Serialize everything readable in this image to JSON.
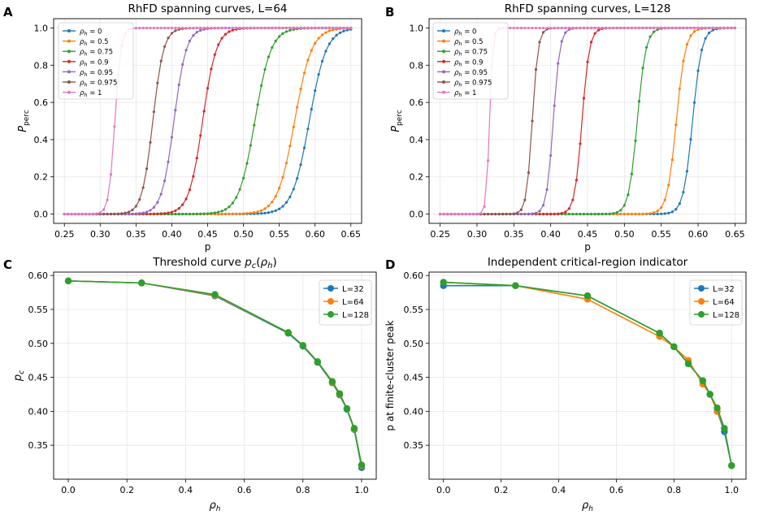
{
  "chart_data": [
    {
      "panel_letter": "A",
      "type": "line",
      "title": "RhFD spanning curves, L=64",
      "xlabel": "p",
      "ylabel": "P_perc",
      "xlim": [
        0.235,
        0.665
      ],
      "ylim": [
        -0.05,
        1.05
      ],
      "xticks": [
        0.25,
        0.3,
        0.35,
        0.4,
        0.45,
        0.5,
        0.55,
        0.6,
        0.65
      ],
      "xtick_labels": [
        "0.25",
        "0.30",
        "0.35",
        "0.40",
        "0.45",
        "0.50",
        "0.55",
        "0.60",
        "0.65"
      ],
      "yticks": [
        0.0,
        0.2,
        0.4,
        0.6,
        0.8,
        1.0
      ],
      "ytick_labels": [
        "0.0",
        "0.2",
        "0.4",
        "0.6",
        "0.8",
        "1.0"
      ],
      "grid": true,
      "legend": "upper-left",
      "x_range": [
        0.25,
        0.65
      ],
      "x_step": 0.005,
      "curve_shape": "logistic",
      "series": [
        {
          "name": "ρh = 0",
          "color": "#1f77b4",
          "center": 0.592,
          "width": 0.0118
        },
        {
          "name": "ρh = 0.5",
          "color": "#ff7f0e",
          "center": 0.5715,
          "width": 0.0118
        },
        {
          "name": "ρh = 0.75",
          "color": "#2ca02c",
          "center": 0.516,
          "width": 0.0112
        },
        {
          "name": "ρh = 0.9",
          "color": "#d62728",
          "center": 0.443,
          "width": 0.0095
        },
        {
          "name": "ρh = 0.95",
          "color": "#9467bd",
          "center": 0.403,
          "width": 0.0085
        },
        {
          "name": "ρh = 0.975",
          "color": "#8c564b",
          "center": 0.3735,
          "width": 0.0075
        },
        {
          "name": "ρh = 1",
          "color": "#e377c2",
          "center": 0.3205,
          "width": 0.0042
        }
      ]
    },
    {
      "panel_letter": "B",
      "type": "line",
      "title": "RhFD spanning curves, L=128",
      "xlabel": "p",
      "ylabel": "P_perc",
      "xlim": [
        0.235,
        0.665
      ],
      "ylim": [
        -0.05,
        1.05
      ],
      "xticks": [
        0.25,
        0.3,
        0.35,
        0.4,
        0.45,
        0.5,
        0.55,
        0.6,
        0.65
      ],
      "xtick_labels": [
        "0.25",
        "0.30",
        "0.35",
        "0.40",
        "0.45",
        "0.50",
        "0.55",
        "0.60",
        "0.65"
      ],
      "yticks": [
        0.0,
        0.2,
        0.4,
        0.6,
        0.8,
        1.0
      ],
      "ytick_labels": [
        "0.0",
        "0.2",
        "0.4",
        "0.6",
        "0.8",
        "1.0"
      ],
      "grid": true,
      "legend": "upper-left",
      "x_range": [
        0.25,
        0.65
      ],
      "x_step": 0.005,
      "curve_shape": "logistic",
      "series": [
        {
          "name": "ρh = 0",
          "color": "#1f77b4",
          "center": 0.5925,
          "width": 0.0062
        },
        {
          "name": "ρh = 0.5",
          "color": "#ff7f0e",
          "center": 0.5705,
          "width": 0.0062
        },
        {
          "name": "ρh = 0.75",
          "color": "#2ca02c",
          "center": 0.5175,
          "width": 0.0058
        },
        {
          "name": "ρh = 0.9",
          "color": "#d62728",
          "center": 0.4425,
          "width": 0.005
        },
        {
          "name": "ρh = 0.95",
          "color": "#9467bd",
          "center": 0.4035,
          "width": 0.0045
        },
        {
          "name": "ρh = 0.975",
          "color": "#8c564b",
          "center": 0.375,
          "width": 0.004
        },
        {
          "name": "ρh = 1",
          "color": "#e377c2",
          "center": 0.317,
          "width": 0.0022
        }
      ]
    },
    {
      "panel_letter": "C",
      "type": "line",
      "title": "Threshold curve p_c(ρ_h)",
      "xlabel": "ρh",
      "ylabel": "pc",
      "xlim": [
        -0.05,
        1.05
      ],
      "ylim": [
        0.3,
        0.605
      ],
      "xticks": [
        0.0,
        0.2,
        0.4,
        0.6,
        0.8,
        1.0
      ],
      "xtick_labels": [
        "0.0",
        "0.2",
        "0.4",
        "0.6",
        "0.8",
        "1.0"
      ],
      "yticks": [
        0.35,
        0.4,
        0.45,
        0.5,
        0.55,
        0.6
      ],
      "ytick_labels": [
        "0.35",
        "0.40",
        "0.45",
        "0.50",
        "0.55",
        "0.60"
      ],
      "grid": true,
      "legend": "upper-right",
      "x": [
        0,
        0.25,
        0.5,
        0.75,
        0.8,
        0.85,
        0.9,
        0.925,
        0.95,
        0.975,
        1.0
      ],
      "series": [
        {
          "name": "L=32",
          "color": "#1f77b4",
          "values": [
            0.592,
            0.589,
            0.57,
            0.515,
            0.496,
            0.472,
            0.442,
            0.424,
            0.403,
            0.373,
            0.317
          ]
        },
        {
          "name": "L=64",
          "color": "#ff7f0e",
          "values": [
            0.592,
            0.589,
            0.571,
            0.516,
            0.497,
            0.473,
            0.443,
            0.425,
            0.404,
            0.374,
            0.32
          ]
        },
        {
          "name": "L=128",
          "color": "#2ca02c",
          "values": [
            0.592,
            0.589,
            0.572,
            0.516,
            0.497,
            0.473,
            0.444,
            0.426,
            0.404,
            0.375,
            0.321
          ]
        }
      ]
    },
    {
      "panel_letter": "D",
      "type": "line",
      "title": "Independent critical-region indicator",
      "xlabel": "ρh",
      "ylabel": "p at finite-cluster peak",
      "xlim": [
        -0.05,
        1.05
      ],
      "ylim": [
        0.3,
        0.605
      ],
      "xticks": [
        0.0,
        0.2,
        0.4,
        0.6,
        0.8,
        1.0
      ],
      "xtick_labels": [
        "0.0",
        "0.2",
        "0.4",
        "0.6",
        "0.8",
        "1.0"
      ],
      "yticks": [
        0.35,
        0.4,
        0.45,
        0.5,
        0.55,
        0.6
      ],
      "ytick_labels": [
        "0.35",
        "0.40",
        "0.45",
        "0.50",
        "0.55",
        "0.60"
      ],
      "grid": true,
      "legend": "upper-right",
      "x": [
        0,
        0.25,
        0.5,
        0.75,
        0.8,
        0.85,
        0.9,
        0.925,
        0.95,
        0.975,
        1.0
      ],
      "series": [
        {
          "name": "L=32",
          "color": "#1f77b4",
          "values": [
            0.585,
            0.585,
            0.57,
            0.515,
            0.495,
            0.47,
            0.445,
            0.425,
            0.4,
            0.37,
            0.32
          ]
        },
        {
          "name": "L=64",
          "color": "#ff7f0e",
          "values": [
            0.59,
            0.585,
            0.565,
            0.51,
            0.495,
            0.475,
            0.44,
            0.425,
            0.4,
            0.375,
            0.32
          ]
        },
        {
          "name": "L=128",
          "color": "#2ca02c",
          "values": [
            0.59,
            0.585,
            0.57,
            0.515,
            0.495,
            0.47,
            0.445,
            0.425,
            0.405,
            0.375,
            0.32
          ]
        }
      ]
    }
  ]
}
